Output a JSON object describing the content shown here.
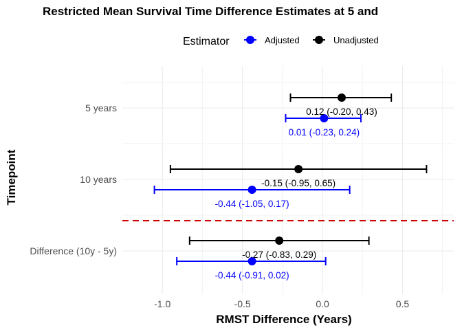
{
  "chart_data": {
    "type": "forest",
    "title": "Restricted Mean Survival Time Difference Estimates at 5 and",
    "xlabel": "RMST Difference (Years)",
    "ylabel": "Timepoint",
    "xlim": [
      -1.25,
      0.82
    ],
    "x_ticks": [
      -1.0,
      -0.5,
      0.0,
      0.5
    ],
    "x_tick_labels": [
      "-1.0",
      "-0.5",
      "0.0",
      "0.5"
    ],
    "categories": [
      "5 years",
      "10 years",
      "Difference (10y - 5y)"
    ],
    "legend": {
      "title": "Estimator",
      "position": "top",
      "entries": [
        "Adjusted",
        "Unadjusted"
      ]
    },
    "reference_line": {
      "orientation": "horizontal",
      "between": [
        "10 years",
        "Difference (10y - 5y)"
      ],
      "style": "dashed",
      "color": "#cc0000"
    },
    "grid": true,
    "series": [
      {
        "name": "Adjusted",
        "color": "#0000ff",
        "points": [
          {
            "category": "5 years",
            "estimate": 0.01,
            "lower": -0.23,
            "upper": 0.24,
            "label": "0.01 (-0.23, 0.24)"
          },
          {
            "category": "10 years",
            "estimate": -0.44,
            "lower": -1.05,
            "upper": 0.17,
            "label": "-0.44 (-1.05, 0.17)"
          },
          {
            "category": "Difference (10y - 5y)",
            "estimate": -0.44,
            "lower": -0.91,
            "upper": 0.02,
            "label": "-0.44 (-0.91, 0.02)"
          }
        ]
      },
      {
        "name": "Unadjusted",
        "color": "#000000",
        "points": [
          {
            "category": "5 years",
            "estimate": 0.12,
            "lower": -0.2,
            "upper": 0.43,
            "label": "0.12 (-0.20, 0.43)"
          },
          {
            "category": "10 years",
            "estimate": -0.15,
            "lower": -0.95,
            "upper": 0.65,
            "label": "-0.15 (-0.95, 0.65)"
          },
          {
            "category": "Difference (10y - 5y)",
            "estimate": -0.27,
            "lower": -0.83,
            "upper": 0.29,
            "label": "-0.27 (-0.83, 0.29)"
          }
        ]
      }
    ]
  }
}
